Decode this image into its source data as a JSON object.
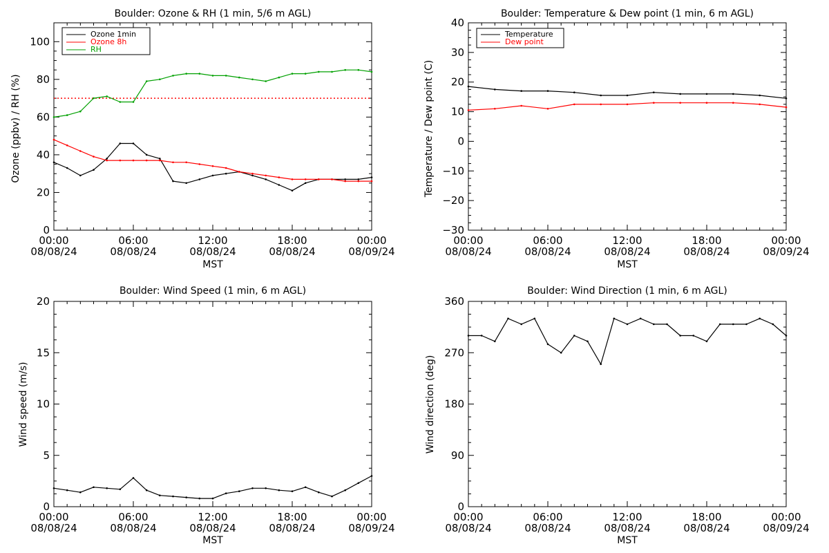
{
  "chart_data": [
    {
      "type": "line",
      "title": "Boulder: Ozone & RH (1 min, 5/6 m AGL)",
      "xlabel": "MST",
      "ylabel": "Ozone (ppbv) / RH (%)",
      "xlim": [
        "08/08/24 00:00",
        "08/09/24 00:00"
      ],
      "ylim": [
        0,
        110
      ],
      "x_ticks": [
        {
          "time": "00:00",
          "date": "08/08/24"
        },
        {
          "time": "06:00",
          "date": "08/08/24"
        },
        {
          "time": "12:00",
          "date": "08/08/24"
        },
        {
          "time": "18:00",
          "date": "08/08/24"
        },
        {
          "time": "00:00",
          "date": "08/09/24"
        }
      ],
      "y_ticks": [
        "0",
        "20",
        "40",
        "60",
        "80",
        "100"
      ],
      "legend_position": "top-left",
      "reference_line": {
        "y": 70,
        "color": "#ff0000",
        "style": "dotted"
      },
      "series": [
        {
          "name": "Ozone 1min",
          "color": "#000000",
          "x": [
            "08/08/24 00:00",
            "08/08/24 01:00",
            "08/08/24 02:00",
            "08/08/24 03:00",
            "08/08/24 04:00",
            "08/08/24 05:00",
            "08/08/24 06:00",
            "08/08/24 07:00",
            "08/08/24 08:00",
            "08/08/24 09:00",
            "08/08/24 10:00",
            "08/08/24 11:00",
            "08/08/24 12:00",
            "08/08/24 13:00",
            "08/08/24 14:00",
            "08/08/24 15:00",
            "08/08/24 16:00",
            "08/08/24 17:00",
            "08/08/24 18:00",
            "08/08/24 19:00",
            "08/08/24 20:00",
            "08/08/24 21:00",
            "08/08/24 22:00",
            "08/08/24 23:00",
            "08/09/24 00:00"
          ],
          "values": [
            36,
            33,
            29,
            32,
            38,
            46,
            46,
            40,
            38,
            26,
            25,
            27,
            29,
            30,
            31,
            29,
            27,
            24,
            21,
            25,
            27,
            27,
            27,
            27,
            28
          ]
        },
        {
          "name": "Ozone 8h",
          "color": "#ff0000",
          "x": [
            "08/08/24 00:00",
            "08/08/24 01:00",
            "08/08/24 02:00",
            "08/08/24 03:00",
            "08/08/24 04:00",
            "08/08/24 05:00",
            "08/08/24 06:00",
            "08/08/24 07:00",
            "08/08/24 08:00",
            "08/08/24 09:00",
            "08/08/24 10:00",
            "08/08/24 11:00",
            "08/08/24 12:00",
            "08/08/24 13:00",
            "08/08/24 14:00",
            "08/08/24 15:00",
            "08/08/24 16:00",
            "08/08/24 17:00",
            "08/08/24 18:00",
            "08/08/24 19:00",
            "08/08/24 20:00",
            "08/08/24 21:00",
            "08/08/24 22:00",
            "08/08/24 23:00",
            "08/09/24 00:00"
          ],
          "values": [
            48,
            45,
            42,
            39,
            37,
            37,
            37,
            37,
            37,
            36,
            36,
            35,
            34,
            33,
            31,
            30,
            29,
            28,
            27,
            27,
            27,
            27,
            26,
            26,
            26
          ]
        },
        {
          "name": "RH",
          "color": "#00a000",
          "x": [
            "08/08/24 00:00",
            "08/08/24 01:00",
            "08/08/24 02:00",
            "08/08/24 03:00",
            "08/08/24 04:00",
            "08/08/24 05:00",
            "08/08/24 06:00",
            "08/08/24 07:00",
            "08/08/24 08:00",
            "08/08/24 09:00",
            "08/08/24 10:00",
            "08/08/24 11:00",
            "08/08/24 12:00",
            "08/08/24 13:00",
            "08/08/24 14:00",
            "08/08/24 15:00",
            "08/08/24 16:00",
            "08/08/24 17:00",
            "08/08/24 18:00",
            "08/08/24 19:00",
            "08/08/24 20:00",
            "08/08/24 21:00",
            "08/08/24 22:00",
            "08/08/24 23:00",
            "08/09/24 00:00"
          ],
          "values": [
            60,
            61,
            63,
            70,
            71,
            68,
            68,
            79,
            80,
            82,
            83,
            83,
            82,
            82,
            81,
            80,
            79,
            81,
            83,
            83,
            84,
            84,
            85,
            85,
            84
          ]
        }
      ]
    },
    {
      "type": "line",
      "title": "Boulder: Temperature & Dew point (1 min, 6 m AGL)",
      "xlabel": "MST",
      "ylabel": "Temperature / Dew point (C)",
      "xlim": [
        "08/08/24 00:00",
        "08/09/24 00:00"
      ],
      "ylim": [
        -30,
        40
      ],
      "x_ticks": [
        {
          "time": "00:00",
          "date": "08/08/24"
        },
        {
          "time": "06:00",
          "date": "08/08/24"
        },
        {
          "time": "12:00",
          "date": "08/08/24"
        },
        {
          "time": "18:00",
          "date": "08/08/24"
        },
        {
          "time": "00:00",
          "date": "08/09/24"
        }
      ],
      "y_ticks": [
        "−30",
        "−20",
        "−10",
        "0",
        "10",
        "20",
        "30",
        "40"
      ],
      "legend_position": "top-left",
      "series": [
        {
          "name": "Temperature",
          "color": "#000000",
          "x": [
            "08/08/24 00:00",
            "08/08/24 02:00",
            "08/08/24 04:00",
            "08/08/24 06:00",
            "08/08/24 08:00",
            "08/08/24 10:00",
            "08/08/24 12:00",
            "08/08/24 14:00",
            "08/08/24 16:00",
            "08/08/24 18:00",
            "08/08/24 20:00",
            "08/08/24 22:00",
            "08/09/24 00:00"
          ],
          "values": [
            18.5,
            17.5,
            17.0,
            17.0,
            16.5,
            15.5,
            15.5,
            16.5,
            16.0,
            16.0,
            16.0,
            15.5,
            14.5
          ]
        },
        {
          "name": "Dew point",
          "color": "#ff0000",
          "x": [
            "08/08/24 00:00",
            "08/08/24 02:00",
            "08/08/24 04:00",
            "08/08/24 06:00",
            "08/08/24 08:00",
            "08/08/24 10:00",
            "08/08/24 12:00",
            "08/08/24 14:00",
            "08/08/24 16:00",
            "08/08/24 18:00",
            "08/08/24 20:00",
            "08/08/24 22:00",
            "08/09/24 00:00"
          ],
          "values": [
            10.5,
            11.0,
            12.0,
            11.0,
            12.5,
            12.5,
            12.5,
            13.0,
            13.0,
            13.0,
            13.0,
            12.5,
            11.5
          ]
        }
      ]
    },
    {
      "type": "line",
      "title": "Boulder: Wind Speed (1 min, 6 m AGL)",
      "xlabel": "MST",
      "ylabel": "Wind speed (m/s)",
      "xlim": [
        "08/08/24 00:00",
        "08/09/24 00:00"
      ],
      "ylim": [
        0,
        20
      ],
      "x_ticks": [
        {
          "time": "00:00",
          "date": "08/08/24"
        },
        {
          "time": "06:00",
          "date": "08/08/24"
        },
        {
          "time": "12:00",
          "date": "08/08/24"
        },
        {
          "time": "18:00",
          "date": "08/08/24"
        },
        {
          "time": "00:00",
          "date": "08/09/24"
        }
      ],
      "y_ticks": [
        "0",
        "5",
        "10",
        "15",
        "20"
      ],
      "series": [
        {
          "color": "#000000",
          "x": [
            "08/08/24 00:00",
            "08/08/24 01:00",
            "08/08/24 02:00",
            "08/08/24 03:00",
            "08/08/24 04:00",
            "08/08/24 05:00",
            "08/08/24 06:00",
            "08/08/24 07:00",
            "08/08/24 08:00",
            "08/08/24 09:00",
            "08/08/24 10:00",
            "08/08/24 11:00",
            "08/08/24 12:00",
            "08/08/24 13:00",
            "08/08/24 14:00",
            "08/08/24 15:00",
            "08/08/24 16:00",
            "08/08/24 17:00",
            "08/08/24 18:00",
            "08/08/24 19:00",
            "08/08/24 20:00",
            "08/08/24 21:00",
            "08/08/24 22:00",
            "08/08/24 23:00",
            "08/09/24 00:00"
          ],
          "values": [
            1.8,
            1.6,
            1.4,
            1.9,
            1.8,
            1.7,
            2.8,
            1.6,
            1.1,
            1.0,
            0.9,
            0.8,
            0.8,
            1.3,
            1.5,
            1.8,
            1.8,
            1.6,
            1.5,
            1.9,
            1.4,
            1.0,
            1.6,
            2.3,
            3.0
          ]
        }
      ]
    },
    {
      "type": "line",
      "title": "Boulder: Wind Direction (1 min, 6 m AGL)",
      "xlabel": "MST",
      "ylabel": "Wind direction (deg)",
      "xlim": [
        "08/08/24 00:00",
        "08/09/24 00:00"
      ],
      "ylim": [
        0,
        360
      ],
      "x_ticks": [
        {
          "time": "00:00",
          "date": "08/08/24"
        },
        {
          "time": "06:00",
          "date": "08/08/24"
        },
        {
          "time": "12:00",
          "date": "08/08/24"
        },
        {
          "time": "18:00",
          "date": "08/08/24"
        },
        {
          "time": "00:00",
          "date": "08/09/24"
        }
      ],
      "y_ticks": [
        "0",
        "90",
        "180",
        "270",
        "360"
      ],
      "series": [
        {
          "color": "#000000",
          "x": [
            "08/08/24 00:00",
            "08/08/24 01:00",
            "08/08/24 02:00",
            "08/08/24 03:00",
            "08/08/24 04:00",
            "08/08/24 05:00",
            "08/08/24 06:00",
            "08/08/24 07:00",
            "08/08/24 08:00",
            "08/08/24 09:00",
            "08/08/24 10:00",
            "08/08/24 11:00",
            "08/08/24 12:00",
            "08/08/24 13:00",
            "08/08/24 14:00",
            "08/08/24 15:00",
            "08/08/24 16:00",
            "08/08/24 17:00",
            "08/08/24 18:00",
            "08/08/24 19:00",
            "08/08/24 20:00",
            "08/08/24 21:00",
            "08/08/24 22:00",
            "08/08/24 23:00",
            "08/09/24 00:00"
          ],
          "values": [
            300,
            300,
            290,
            330,
            320,
            330,
            285,
            270,
            300,
            290,
            250,
            330,
            320,
            330,
            320,
            320,
            300,
            300,
            290,
            320,
            320,
            320,
            330,
            320,
            300
          ]
        }
      ]
    }
  ]
}
